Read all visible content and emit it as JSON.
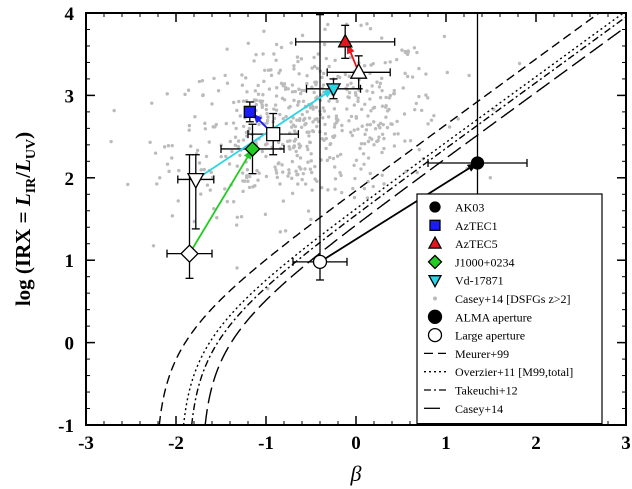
{
  "chart_data": {
    "type": "scatter",
    "xlabel": "β",
    "ylabel": "log (IRX = L_IR/L_UV)",
    "ylabel_parts": {
      "prefix": "log (IRX = ",
      "l1": "L",
      "s1": "IR",
      "slash": "/",
      "l2": "L",
      "s2": "UV",
      "suffix": ")"
    },
    "xlim": [
      -3,
      3
    ],
    "ylim": [
      -1,
      4
    ],
    "xticks": [
      "-3",
      "-2",
      "-1",
      "0",
      "1",
      "2",
      "3"
    ],
    "yticks": [
      "-1",
      "0",
      "1",
      "2",
      "3",
      "4"
    ],
    "legend_position": "lower-right",
    "legend": [
      {
        "label": "AK03",
        "marker": "circle",
        "color": "#000000",
        "filled": true
      },
      {
        "label": "AzTEC1",
        "marker": "square",
        "color": "#1a1aff",
        "filled": true
      },
      {
        "label": "AzTEC5",
        "marker": "triangle-up",
        "color": "#e8141c",
        "filled": true
      },
      {
        "label": "J1000+0234",
        "marker": "diamond",
        "color": "#22cc22",
        "filled": true
      },
      {
        "label": "Vd-17871",
        "marker": "triangle-down",
        "color": "#2bd4e6",
        "filled": true
      },
      {
        "label": "Casey+14 [DSFGs z>2]",
        "marker": "dot",
        "color": "#bbbbbb",
        "filled": true
      },
      {
        "label": "ALMA aperture",
        "marker": "circle-large",
        "color": "#000000",
        "filled": true
      },
      {
        "label": "Large aperture",
        "marker": "circle-large",
        "color": "#000000",
        "filled": false
      },
      {
        "label": "Meurer+99",
        "marker": "line",
        "dash": "9,5"
      },
      {
        "label": "Overzier+11 [M99,total]",
        "marker": "line",
        "dash": "2,3"
      },
      {
        "label": "Takeuchi+12",
        "marker": "line",
        "dash": "7,3,2,3"
      },
      {
        "label": "Casey+14",
        "marker": "line",
        "dash": "16,6"
      }
    ],
    "sources": [
      {
        "name": "AK03",
        "color": "#000000",
        "alma": {
          "x": 1.35,
          "y": 2.18,
          "xerr": 0.55,
          "yerr_lo": 0.45,
          "yerr_hi": 2.2
        },
        "large": {
          "x": -0.4,
          "y": 0.98,
          "xerr": 0.3,
          "yerr_lo": 0.22,
          "yerr_hi": 3.0
        }
      },
      {
        "name": "AzTEC1",
        "color": "#1a1aff",
        "alma": {
          "x": -1.18,
          "y": 2.8,
          "xerr": 0.04,
          "yerr_lo": 0.12,
          "yerr_hi": 0.12
        },
        "large": {
          "x": -0.92,
          "y": 2.53,
          "xerr": 0.28,
          "yerr_lo": 0.25,
          "yerr_hi": 0.25
        }
      },
      {
        "name": "AzTEC5",
        "color": "#e8141c",
        "alma": {
          "x": -0.12,
          "y": 3.65,
          "xerr": 0.55,
          "yerr_lo": 0.2,
          "yerr_hi": 0.2
        },
        "large": {
          "x": 0.03,
          "y": 3.28,
          "xerr": 0.35,
          "yerr_lo": 0.2,
          "yerr_hi": 0.2
        }
      },
      {
        "name": "J1000+0234",
        "color": "#22cc22",
        "alma": {
          "x": -1.15,
          "y": 2.35,
          "xerr": 0.35,
          "yerr_lo": 0.3,
          "yerr_hi": 0.3
        },
        "large": {
          "x": -1.85,
          "y": 1.08,
          "xerr": 0.25,
          "yerr_lo": 0.3,
          "yerr_hi": 1.2
        }
      },
      {
        "name": "Vd-17871",
        "color": "#2bd4e6",
        "alma": {
          "x": -0.25,
          "y": 3.08,
          "xerr": 0.3,
          "yerr_lo": 0.12,
          "yerr_hi": 0.12
        },
        "large": {
          "x": -1.78,
          "y": 1.98,
          "xerr": 0.2,
          "yerr_lo": 0.6,
          "yerr_hi": 0.3
        }
      }
    ],
    "arrows": [
      {
        "from": [
          -0.4,
          0.98
        ],
        "to": [
          1.35,
          2.18
        ],
        "color": "#000000"
      },
      {
        "from": [
          -0.92,
          2.53
        ],
        "to": [
          -1.15,
          2.78
        ],
        "color": "#1a1aff"
      },
      {
        "from": [
          0.03,
          3.28
        ],
        "to": [
          -0.1,
          3.63
        ],
        "color": "#e8141c"
      },
      {
        "from": [
          -1.85,
          1.08
        ],
        "to": [
          -1.15,
          2.35
        ],
        "color": "#22cc22"
      },
      {
        "from": [
          -1.78,
          1.98
        ],
        "to": [
          -0.25,
          3.08
        ],
        "color": "#2bd4e6"
      }
    ],
    "curves": [
      {
        "name": "Meurer+99",
        "beta0": -2.23,
        "dash": "9,5"
      },
      {
        "name": "Overzier+11",
        "beta0": -1.96,
        "dash": "2,3"
      },
      {
        "name": "Takeuchi+12",
        "beta0": -1.87,
        "dash": "7,3,2,3"
      },
      {
        "name": "Casey+14",
        "beta0": -1.72,
        "dash": "16,6"
      }
    ],
    "background_cloud": {
      "label": "Casey+14 [DSFGs z>2]",
      "color": "#bbbbbb",
      "center": [
        -0.55,
        2.65
      ],
      "spread": [
        0.75,
        0.48
      ],
      "count": 560
    }
  }
}
